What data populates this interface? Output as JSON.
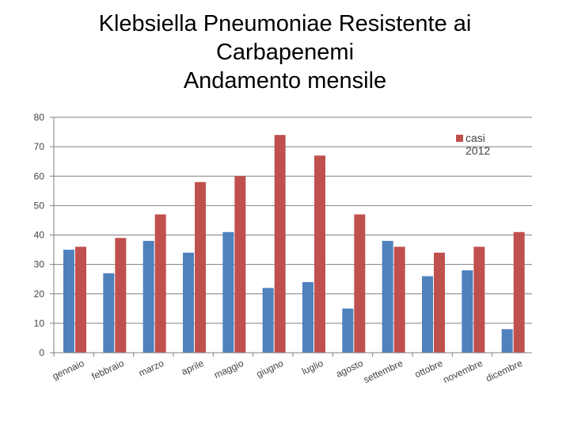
{
  "title_lines": [
    "Klebsiella Pneumoniae Resistente ai",
    "Carbapenemi",
    "Andamento mensile"
  ],
  "chart_data": {
    "type": "bar",
    "categories": [
      "gennaio",
      "febbraio",
      "marzo",
      "aprile",
      "maggio",
      "giugno",
      "luglio",
      "agosto",
      "settembre",
      "ottobre",
      "novembre",
      "dicembre"
    ],
    "series": [
      {
        "values": [
          35,
          27,
          38,
          34,
          41,
          22,
          24,
          15,
          38,
          26,
          28,
          8
        ],
        "color": "#4f81bd"
      },
      {
        "name": "casi 2012",
        "values": [
          36,
          39,
          47,
          58,
          60,
          74,
          67,
          47,
          36,
          34,
          36,
          41
        ],
        "color": "#c0504d"
      }
    ],
    "ylim": [
      0,
      80
    ],
    "yticks": [
      0,
      10,
      20,
      30,
      40,
      50,
      60,
      70,
      80
    ],
    "grid": true,
    "legend": {
      "position": "top-right",
      "label_lines": [
        "casi",
        "2012"
      ]
    }
  }
}
